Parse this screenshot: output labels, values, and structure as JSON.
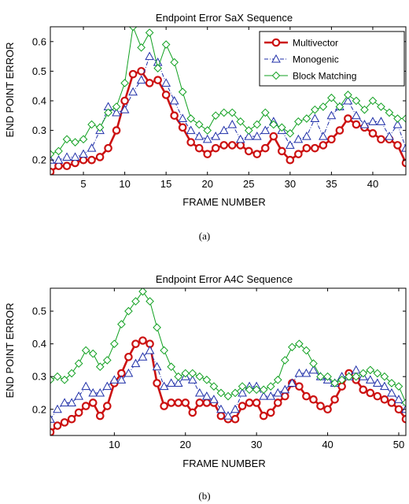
{
  "colors": {
    "multivector": "#cc1111",
    "monogenic": "#1f2fa8",
    "block": "#10a020"
  },
  "chart_data": [
    {
      "type": "line",
      "title": "Endpoint Error SaX Sequence",
      "xlabel": "FRAME NUMBER",
      "ylabel": "END POINT ERROR",
      "caption": "(a)",
      "xlim": [
        1,
        44
      ],
      "ylim": [
        0.15,
        0.65
      ],
      "xticks": [
        5,
        10,
        15,
        20,
        25,
        30,
        35,
        40
      ],
      "yticks": [
        0.2,
        0.3,
        0.4,
        0.5,
        0.6
      ],
      "ytick_labels": [
        "0.2",
        "0.3",
        "0.4",
        "0.5",
        "0.6"
      ],
      "legend_position": "top-right",
      "legend": [
        "Multivector",
        "Monogenic",
        "Block Matching"
      ],
      "x_start": 1,
      "series": [
        {
          "name": "Multivector",
          "key": "multivector",
          "style": "circle",
          "values": [
            0.16,
            0.18,
            0.18,
            0.19,
            0.2,
            0.2,
            0.21,
            0.24,
            0.3,
            0.4,
            0.49,
            0.5,
            0.46,
            0.47,
            0.42,
            0.35,
            0.31,
            0.26,
            0.24,
            0.22,
            0.24,
            0.25,
            0.25,
            0.25,
            0.23,
            0.22,
            0.24,
            0.28,
            0.23,
            0.2,
            0.22,
            0.24,
            0.24,
            0.25,
            0.27,
            0.3,
            0.34,
            0.32,
            0.31,
            0.29,
            0.27,
            0.27,
            0.25,
            0.19,
            0.16
          ]
        },
        {
          "name": "Monogenic",
          "key": "monogenic",
          "style": "triangle",
          "values": [
            0.2,
            0.2,
            0.21,
            0.21,
            0.22,
            0.24,
            0.3,
            0.38,
            0.36,
            0.37,
            0.43,
            0.47,
            0.55,
            0.53,
            0.46,
            0.4,
            0.34,
            0.3,
            0.28,
            0.27,
            0.28,
            0.3,
            0.32,
            0.27,
            0.28,
            0.28,
            0.3,
            0.33,
            0.3,
            0.25,
            0.27,
            0.28,
            0.34,
            0.28,
            0.35,
            0.38,
            0.4,
            0.35,
            0.32,
            0.33,
            0.33,
            0.28,
            0.32,
            0.24,
            0.21
          ]
        },
        {
          "name": "Block Matching",
          "key": "block",
          "style": "diamond",
          "values": [
            0.22,
            0.23,
            0.27,
            0.26,
            0.27,
            0.32,
            0.31,
            0.36,
            0.38,
            0.46,
            0.65,
            0.58,
            0.63,
            0.51,
            0.59,
            0.53,
            0.43,
            0.34,
            0.32,
            0.3,
            0.35,
            0.36,
            0.36,
            0.33,
            0.3,
            0.32,
            0.36,
            0.32,
            0.31,
            0.29,
            0.33,
            0.34,
            0.37,
            0.38,
            0.41,
            0.38,
            0.42,
            0.4,
            0.37,
            0.4,
            0.38,
            0.36,
            0.34,
            0.34,
            0.33
          ]
        }
      ]
    },
    {
      "type": "line",
      "title": "Endpoint Error A4C Sequence",
      "xlabel": "FRAME NUMBER",
      "ylabel": "END POINT ERROR",
      "caption": "(b)",
      "xlim": [
        1,
        51
      ],
      "ylim": [
        0.12,
        0.57
      ],
      "xticks": [
        10,
        20,
        30,
        40,
        50
      ],
      "yticks": [
        0.2,
        0.3,
        0.4,
        0.5
      ],
      "ytick_labels": [
        "0.2",
        "0.3",
        "0.4",
        "0.5"
      ],
      "legend_position": "none",
      "legend": [],
      "x_start": 1,
      "series": [
        {
          "name": "Multivector",
          "key": "multivector",
          "style": "circle",
          "values": [
            0.13,
            0.15,
            0.16,
            0.17,
            0.19,
            0.21,
            0.22,
            0.18,
            0.21,
            0.28,
            0.31,
            0.36,
            0.4,
            0.41,
            0.4,
            0.28,
            0.21,
            0.22,
            0.22,
            0.22,
            0.19,
            0.22,
            0.22,
            0.22,
            0.18,
            0.17,
            0.17,
            0.21,
            0.22,
            0.22,
            0.18,
            0.19,
            0.22,
            0.24,
            0.28,
            0.27,
            0.24,
            0.23,
            0.21,
            0.2,
            0.23,
            0.27,
            0.31,
            0.29,
            0.26,
            0.25,
            0.24,
            0.23,
            0.22,
            0.2,
            0.17
          ]
        },
        {
          "name": "Monogenic",
          "key": "monogenic",
          "style": "triangle",
          "values": [
            0.17,
            0.2,
            0.22,
            0.22,
            0.24,
            0.27,
            0.25,
            0.25,
            0.27,
            0.29,
            0.29,
            0.31,
            0.34,
            0.36,
            0.38,
            0.33,
            0.27,
            0.28,
            0.28,
            0.3,
            0.29,
            0.25,
            0.24,
            0.23,
            0.2,
            0.18,
            0.2,
            0.25,
            0.27,
            0.27,
            0.24,
            0.24,
            0.25,
            0.26,
            0.28,
            0.31,
            0.31,
            0.32,
            0.3,
            0.29,
            0.28,
            0.3,
            0.3,
            0.32,
            0.3,
            0.29,
            0.28,
            0.27,
            0.25,
            0.23,
            0.2
          ]
        },
        {
          "name": "Block Matching",
          "key": "block",
          "style": "diamond",
          "values": [
            0.29,
            0.3,
            0.29,
            0.31,
            0.34,
            0.38,
            0.37,
            0.33,
            0.35,
            0.4,
            0.46,
            0.5,
            0.53,
            0.56,
            0.53,
            0.45,
            0.38,
            0.33,
            0.3,
            0.31,
            0.31,
            0.3,
            0.29,
            0.27,
            0.25,
            0.24,
            0.25,
            0.27,
            0.26,
            0.26,
            0.26,
            0.27,
            0.29,
            0.35,
            0.39,
            0.4,
            0.38,
            0.34,
            0.3,
            0.3,
            0.28,
            0.29,
            0.3,
            0.3,
            0.31,
            0.32,
            0.31,
            0.3,
            0.28,
            0.27,
            0.22
          ]
        }
      ]
    }
  ]
}
